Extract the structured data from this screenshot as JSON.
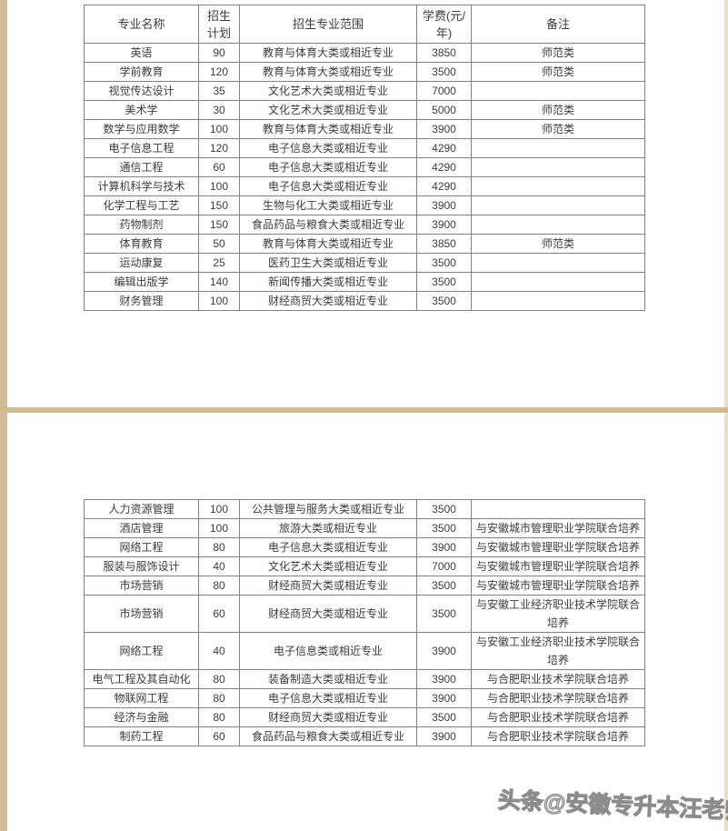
{
  "watermark": {
    "text": "头条@安徽专升本汪老师"
  },
  "colors": {
    "page_background": "#ffffff",
    "edge_tan": "#d2bc93",
    "divider_tan": "#d0ba90",
    "table_border": "#828282",
    "text": "#3c3c3c",
    "watermark_gray": "#7d7d7d"
  },
  "admissions_table_page1": {
    "headers": [
      "专业名称",
      "招生计划",
      "招生专业范围",
      "学费(元/年)",
      "备注"
    ],
    "rows": [
      [
        "英语",
        "90",
        "教育与体育大类或相近专业",
        "3850",
        "师范类"
      ],
      [
        "学前教育",
        "120",
        "教育与体育大类或相近专业",
        "3500",
        "师范类"
      ],
      [
        "视觉传达设计",
        "35",
        "文化艺术大类或相近专业",
        "7000",
        ""
      ],
      [
        "美术学",
        "30",
        "文化艺术大类或相近专业",
        "5000",
        "师范类"
      ],
      [
        "数学与应用数学",
        "100",
        "教育与体育大类或相近专业",
        "3900",
        "师范类"
      ],
      [
        "电子信息工程",
        "120",
        "电子信息大类或相近专业",
        "4290",
        ""
      ],
      [
        "通信工程",
        "60",
        "电子信息大类或相近专业",
        "4290",
        ""
      ],
      [
        "计算机科学与技术",
        "100",
        "电子信息大类或相近专业",
        "4290",
        ""
      ],
      [
        "化学工程与工艺",
        "150",
        "生物与化工大类或相近专业",
        "3900",
        ""
      ],
      [
        "药物制剂",
        "150",
        "食品药品与粮食大类或相近专业",
        "3900",
        ""
      ],
      [
        "体育教育",
        "50",
        "教育与体育大类或相近专业",
        "3850",
        "师范类"
      ],
      [
        "运动康复",
        "25",
        "医药卫生大类或相近专业",
        "3500",
        ""
      ],
      [
        "编辑出版学",
        "140",
        "新闻传播大类或相近专业",
        "3500",
        ""
      ],
      [
        "财务管理",
        "100",
        "财经商贸大类或相近专业",
        "3500",
        ""
      ]
    ]
  },
  "admissions_table_page2": {
    "rows": [
      [
        "人力资源管理",
        "100",
        "公共管理与服务大类或相近专业",
        "3500",
        ""
      ],
      [
        "酒店管理",
        "100",
        "旅游大类或相近专业",
        "3500",
        "与安徽城市管理职业学院联合培养"
      ],
      [
        "网络工程",
        "80",
        "电子信息大类或相近专业",
        "3900",
        "与安徽城市管理职业学院联合培养"
      ],
      [
        "服装与服饰设计",
        "40",
        "文化艺术大类或相近专业",
        "7000",
        "与安徽城市管理职业学院联合培养"
      ],
      [
        "市场营销",
        "80",
        "财经商贸大类或相近专业",
        "3500",
        "与安徽城市管理职业学院联合培养"
      ],
      [
        "市场营销",
        "60",
        "财经商贸大类或相近专业",
        "3500",
        "与安徽工业经济职业技术学院联合培养"
      ],
      [
        "网络工程",
        "40",
        "电子信息类或相近专业",
        "3900",
        "与安徽工业经济职业技术学院联合培养"
      ],
      [
        "电气工程及其自动化",
        "80",
        "装备制造大类或相近专业",
        "3900",
        "与合肥职业技术学院联合培养"
      ],
      [
        "物联网工程",
        "80",
        "电子信息大类或相近专业",
        "3900",
        "与合肥职业技术学院联合培养"
      ],
      [
        "经济与金融",
        "80",
        "财经商贸大类或相近专业",
        "3500",
        "与合肥职业技术学院联合培养"
      ],
      [
        "制药工程",
        "60",
        "食品药品与粮食大类或相近专业",
        "3900",
        "与合肥职业技术学院联合培养"
      ]
    ]
  }
}
